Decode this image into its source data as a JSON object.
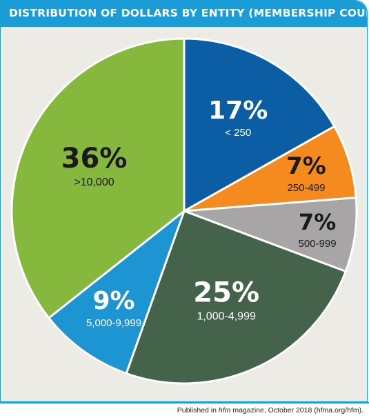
{
  "header": {
    "title": "DISTRIBUTION OF DOLLARS BY ENTITY (MEMBERSHIP COUNT)"
  },
  "chart_data": {
    "type": "pie",
    "title": "DISTRIBUTION OF DOLLARS BY ENTITY (MEMBERSHIP COUNT)",
    "slices": [
      {
        "label": "< 250",
        "value": 17,
        "value_label": "17%",
        "color": "#0b5ea3",
        "text_color": "#ffffff"
      },
      {
        "label": "250-499",
        "value": 7,
        "value_label": "7%",
        "color": "#f58a1f",
        "text_color": "#1a1a1a"
      },
      {
        "label": "500-999",
        "value": 7,
        "value_label": "7%",
        "color": "#a7a5a6",
        "text_color": "#1a1a1a"
      },
      {
        "label": "1,000-4,999",
        "value": 25,
        "value_label": "25%",
        "color": "#45634b",
        "text_color": "#ffffff"
      },
      {
        "label": "5,000-9,999",
        "value": 9,
        "value_label": "9%",
        "color": "#1d95d2",
        "text_color": "#ffffff"
      },
      {
        "label": ">10,000",
        "value": 36,
        "value_label": "36%",
        "color": "#85b83d",
        "text_color": "#1a1a1a"
      }
    ]
  },
  "footer": {
    "credit_prefix": "Published in ",
    "credit_italic": "hfm",
    "credit_suffix": " magazine, October 2018 (hfma.org/hfm)."
  }
}
